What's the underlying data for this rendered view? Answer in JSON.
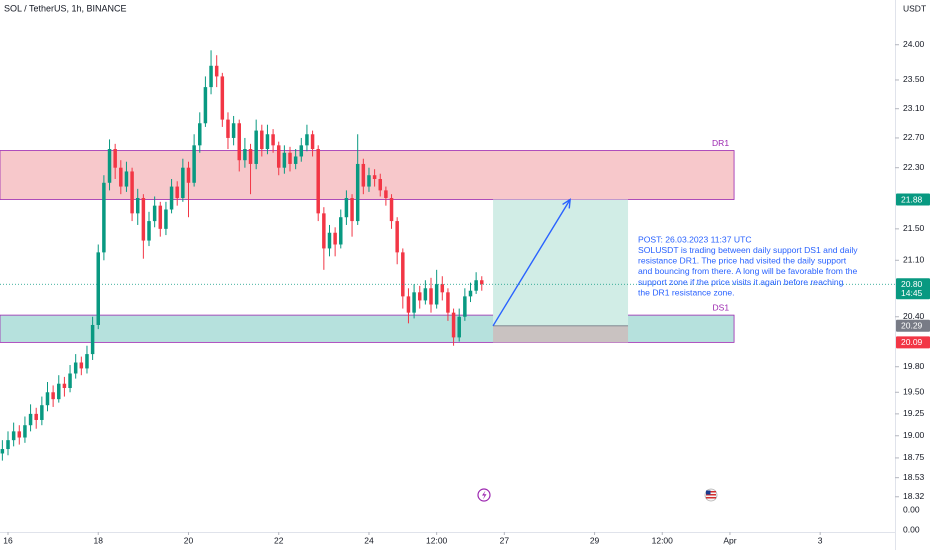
{
  "chart_data": {
    "type": "candlestick",
    "title": "SOL / TetherUS, 1h, BINANCE",
    "currency": "USDT",
    "log_scale": true,
    "ylim": [
      18.23,
      24.65
    ],
    "yticks": [
      {
        "value": 24,
        "label": "24.00"
      },
      {
        "value": 23.5,
        "label": "23.50"
      },
      {
        "value": 23.1,
        "label": "23.10"
      },
      {
        "value": 22.7,
        "label": "22.70"
      },
      {
        "value": 22.3,
        "label": "22.30"
      },
      {
        "value": 21.5,
        "label": "21.50"
      },
      {
        "value": 21.1,
        "label": "21.10"
      },
      {
        "value": 20.4,
        "label": "20.40"
      },
      {
        "value": 19.8,
        "label": "19.80"
      },
      {
        "value": 19.5,
        "label": "19.50"
      },
      19.25,
      {
        "value": 19,
        "label": "19.00"
      },
      18.75,
      18.53,
      18.32
    ],
    "lower_pane_labels": [
      "0.00",
      "0.00"
    ],
    "xlim": [
      -4.26,
      471.8
    ],
    "xticks": [
      {
        "value": 0,
        "label": "16"
      },
      {
        "value": 48,
        "label": "18"
      },
      {
        "value": 96,
        "label": "20"
      },
      {
        "value": 144,
        "label": "22"
      },
      {
        "value": 192,
        "label": "24"
      },
      {
        "value": 228,
        "label": "12:00"
      },
      {
        "value": 264,
        "label": "27"
      },
      {
        "value": 312,
        "label": "29"
      },
      {
        "value": 348,
        "label": "12:00"
      },
      {
        "value": 384,
        "label": "Apr"
      },
      {
        "value": 432,
        "label": "3"
      }
    ],
    "up_color": "#089981",
    "down_color": "#f23645",
    "candles": [
      [
        -3,
        18.8,
        18.95,
        18.72,
        18.85
      ],
      [
        0,
        18.85,
        19.05,
        18.78,
        18.95
      ],
      [
        3,
        18.95,
        19.15,
        18.88,
        19.05
      ],
      [
        6,
        19.05,
        19.12,
        18.9,
        18.98
      ],
      [
        9,
        18.98,
        19.22,
        18.92,
        19.12
      ],
      [
        12,
        19.12,
        19.36,
        19.05,
        19.25
      ],
      [
        15,
        19.25,
        19.32,
        19.08,
        19.18
      ],
      [
        18,
        19.18,
        19.45,
        19.12,
        19.35
      ],
      [
        21,
        19.35,
        19.62,
        19.28,
        19.5
      ],
      [
        24,
        19.5,
        19.58,
        19.33,
        19.42
      ],
      [
        27,
        19.42,
        19.7,
        19.38,
        19.6
      ],
      [
        30,
        19.6,
        19.68,
        19.45,
        19.55
      ],
      [
        33,
        19.55,
        19.82,
        19.5,
        19.72
      ],
      [
        36,
        19.72,
        19.95,
        19.66,
        19.85
      ],
      [
        39,
        19.85,
        19.92,
        19.7,
        19.78
      ],
      [
        42,
        19.78,
        20.05,
        19.72,
        19.95
      ],
      [
        45,
        19.95,
        20.4,
        19.88,
        20.3
      ],
      [
        48,
        20.3,
        21.3,
        20.25,
        21.2
      ],
      [
        51,
        21.2,
        22.2,
        21.1,
        22.1
      ],
      [
        54,
        22.1,
        22.68,
        22.0,
        22.55
      ],
      [
        57,
        22.55,
        22.62,
        22.15,
        22.3
      ],
      [
        60,
        22.3,
        22.4,
        21.95,
        22.05
      ],
      [
        63,
        22.05,
        22.38,
        21.98,
        22.25
      ],
      [
        66,
        22.25,
        22.3,
        21.6,
        21.7
      ],
      [
        69,
        21.7,
        22.02,
        21.55,
        21.9
      ],
      [
        72,
        21.9,
        21.95,
        21.12,
        21.35
      ],
      [
        75,
        21.35,
        21.72,
        21.28,
        21.6
      ],
      [
        78,
        21.6,
        21.92,
        21.52,
        21.8
      ],
      [
        81,
        21.8,
        21.85,
        21.4,
        21.5
      ],
      [
        84,
        21.5,
        21.85,
        21.42,
        21.75
      ],
      [
        87,
        21.75,
        22.15,
        21.7,
        22.05
      ],
      [
        90,
        22.05,
        22.12,
        21.8,
        21.9
      ],
      [
        93,
        21.9,
        22.42,
        21.85,
        22.3
      ],
      [
        96,
        22.3,
        22.38,
        21.65,
        22.1
      ],
      [
        99,
        22.1,
        22.75,
        22.05,
        22.6
      ],
      [
        102,
        22.6,
        23.05,
        22.5,
        22.9
      ],
      [
        105,
        22.9,
        23.55,
        22.85,
        23.4
      ],
      [
        108,
        23.4,
        23.92,
        23.3,
        23.7
      ],
      [
        111,
        23.7,
        23.85,
        23.4,
        23.55
      ],
      [
        114,
        23.55,
        23.6,
        22.85,
        22.95
      ],
      [
        117,
        22.95,
        23.05,
        22.55,
        22.7
      ],
      [
        120,
        22.7,
        23.0,
        22.6,
        22.9
      ],
      [
        123,
        22.9,
        22.95,
        22.25,
        22.4
      ],
      [
        126,
        22.4,
        22.7,
        22.3,
        22.55
      ],
      [
        129,
        22.55,
        22.62,
        21.95,
        22.35
      ],
      [
        132,
        22.35,
        22.95,
        22.28,
        22.8
      ],
      [
        135,
        22.8,
        22.88,
        22.45,
        22.55
      ],
      [
        138,
        22.55,
        22.88,
        22.48,
        22.75
      ],
      [
        141,
        22.75,
        22.82,
        22.5,
        22.6
      ],
      [
        144,
        22.6,
        22.65,
        22.2,
        22.3
      ],
      [
        147,
        22.3,
        22.6,
        22.22,
        22.5
      ],
      [
        150,
        22.5,
        22.58,
        22.25,
        22.35
      ],
      [
        153,
        22.35,
        22.55,
        22.28,
        22.45
      ],
      [
        156,
        22.45,
        22.7,
        22.38,
        22.6
      ],
      [
        159,
        22.6,
        22.88,
        22.52,
        22.75
      ],
      [
        162,
        22.75,
        22.8,
        22.45,
        22.55
      ],
      [
        165,
        22.55,
        22.6,
        21.6,
        21.7
      ],
      [
        168,
        21.7,
        21.78,
        20.98,
        21.25
      ],
      [
        171,
        21.25,
        21.55,
        21.15,
        21.45
      ],
      [
        174,
        21.45,
        21.52,
        21.15,
        21.3
      ],
      [
        177,
        21.3,
        21.75,
        21.25,
        21.65
      ],
      [
        180,
        21.65,
        22.0,
        21.55,
        21.9
      ],
      [
        183,
        21.9,
        21.95,
        21.4,
        21.6
      ],
      [
        186,
        21.6,
        22.75,
        21.55,
        22.35
      ],
      [
        189,
        22.35,
        22.42,
        21.95,
        22.05
      ],
      [
        192,
        22.05,
        22.3,
        21.98,
        22.2
      ],
      [
        195,
        22.2,
        22.28,
        22.05,
        22.15
      ],
      [
        198,
        22.15,
        22.22,
        21.92,
        22.0
      ],
      [
        201,
        22.0,
        22.05,
        21.8,
        21.9
      ],
      [
        204,
        21.9,
        21.95,
        21.5,
        21.6
      ],
      [
        207,
        21.6,
        21.65,
        21.05,
        21.2
      ],
      [
        210,
        21.2,
        21.25,
        20.5,
        20.65
      ],
      [
        213,
        20.65,
        20.75,
        20.32,
        20.45
      ],
      [
        216,
        20.45,
        20.8,
        20.38,
        20.7
      ],
      [
        219,
        20.7,
        20.78,
        20.5,
        20.6
      ],
      [
        222,
        20.6,
        20.85,
        20.55,
        20.75
      ],
      [
        225,
        20.75,
        20.88,
        20.45,
        20.55
      ],
      [
        228,
        20.55,
        20.98,
        20.5,
        20.8
      ],
      [
        231,
        20.8,
        20.9,
        20.6,
        20.7
      ],
      [
        234,
        20.7,
        20.75,
        20.35,
        20.45
      ],
      [
        237,
        20.45,
        20.5,
        20.05,
        20.15
      ],
      [
        240,
        20.15,
        20.5,
        20.1,
        20.4
      ],
      [
        243,
        20.4,
        20.75,
        20.35,
        20.65
      ],
      [
        246,
        20.65,
        20.82,
        20.58,
        20.72
      ],
      [
        249,
        20.72,
        20.95,
        20.68,
        20.85
      ],
      [
        252,
        20.85,
        20.9,
        20.72,
        20.8
      ]
    ],
    "zones": [
      {
        "name": "DR1",
        "top": 22.53,
        "bottom": 21.88,
        "x_end": 386.2,
        "fill": "#f7c5c8",
        "stroke": "#9c27b0"
      },
      {
        "name": "DS1",
        "top": 20.42,
        "bottom": 20.09,
        "x_end": 386.2,
        "fill": "#b2dfdb",
        "stroke": "#9c27b0"
      }
    ],
    "position": {
      "x_start": 258,
      "x_end": 329.8,
      "entry": 20.29,
      "target": 21.88,
      "stop": 20.09,
      "profit_color": "#d1ede6",
      "loss_color": "#cdbcbc"
    },
    "arrow": {
      "x": [
        258,
        299
      ],
      "y": [
        20.29,
        21.88
      ],
      "color": "#2962ff"
    },
    "last_price": {
      "value": 20.8,
      "label": "20.80",
      "countdown": "14:45"
    },
    "price_labels": [
      {
        "value": 21.88,
        "color": "#089981"
      },
      {
        "value": 20.29,
        "color": "#787b86"
      },
      {
        "value": 20.09,
        "color": "#f23645"
      }
    ],
    "annotation": {
      "lines": [
        "POST: 26.03.2023 11:37 UTC",
        "SOLUSDT is trading between daily support DS1 and daily",
        "resistance DR1. The price had visited the daily support",
        "and bouncing from there. A long will be favorable from the",
        "support zone if the price visits it again before reaching",
        "the DR1 resistance zone."
      ]
    }
  }
}
